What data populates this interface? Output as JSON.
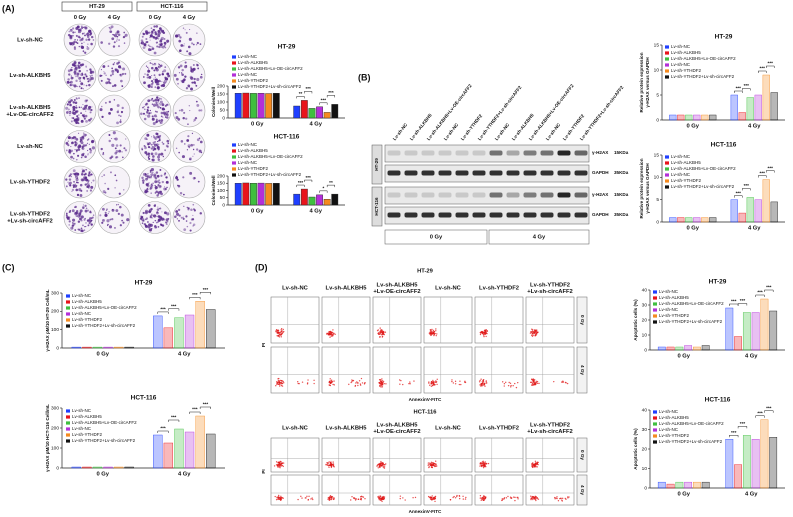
{
  "panel_labels": [
    "(A)",
    "(B)",
    "(C)",
    "(D)"
  ],
  "colony": {
    "cell_lines": [
      "HT-29",
      "HCT-116"
    ],
    "doses": [
      "0 Gy",
      "4 Gy",
      "0 Gy",
      "4 Gy"
    ],
    "rows": [
      [
        "Lv-sh-NC"
      ],
      [
        "Lv-sh-ALKBH5"
      ],
      [
        "Lv-sh-ALKBH5",
        "+Lv-OE-circAFF2"
      ],
      [
        "Lv-sh-NC"
      ],
      [
        "Lv-sh-YTHDF2"
      ],
      [
        "Lv-sh-YTHDF2",
        "+Lv-sh-circAFF2"
      ]
    ]
  },
  "blot": {
    "lanes": [
      "Lv-sh-NC",
      "Lv-sh-ALKBH5",
      "Lv-sh-ALKBH5+Lv-OE-circAFF2",
      "Lv-sh-NC",
      "Lv-sh-YTHDF2",
      "Lv-sh-YTHDF2+Lv-sh-circAFF2",
      "Lv-sh-NC",
      "Lv-sh-ALKBH5",
      "Lv-sh-ALKBH5+Lv-OE-circAFF2",
      "Lv-sh-NC",
      "Lv-sh-YTHDF2",
      "Lv-sh-YTHDF2+Lv-sh-circAFF2"
    ],
    "cell_lines": [
      "HT-29",
      "HCT-116"
    ],
    "bands": [
      {
        "name": "γ-H2AX",
        "size": "15KDa"
      },
      {
        "name": "GAPDH",
        "size": "35KDa"
      }
    ],
    "doses": [
      "0 Gy",
      "4 Gy"
    ]
  },
  "flow": [
    {
      "title": "HT-29",
      "columns": [
        [
          "Lv-sh-NC"
        ],
        [
          "Lv-sh-ALKBH5"
        ],
        [
          "Lv-sh-ALKBH5",
          "+Lv-OE-circAFF2"
        ],
        [
          "Lv-sh-NC"
        ],
        [
          "Lv-sh-YTHDF2"
        ],
        [
          "Lv-sh-YTHDF2",
          "+Lv-sh-circAFF2"
        ]
      ],
      "doses": [
        "0 Gy",
        "4 Gy"
      ],
      "y_label": "PI",
      "x_label": "AnnexinV-FITC"
    },
    {
      "title": "HCT-116",
      "columns": [
        [
          "Lv-sh-NC"
        ],
        [
          "Lv-sh-ALKBH5"
        ],
        [
          "Lv-sh-ALKBH5",
          "+Lv-OE-circAFF2"
        ],
        [
          "Lv-sh-NC"
        ],
        [
          "Lv-sh-YTHDF2"
        ],
        [
          "Lv-sh-YTHDF2",
          "+Lv-sh-circAFF2"
        ]
      ],
      "doses": [
        "0 Gy",
        "4 Gy"
      ],
      "y_label": "PI",
      "x_label": "AnnexinV-FITC"
    }
  ],
  "chart_data": [
    {
      "type": "bar",
      "title": "HT-29",
      "ylabel": "Colonies/Well",
      "categories": [
        "0 Gy",
        "4 Gy"
      ],
      "ylim": [
        0,
        200
      ],
      "yticks": [
        0,
        50,
        100,
        150,
        200
      ],
      "bar_fill": "solid",
      "series": [
        {
          "name": "Lv-sh-NC",
          "color": "#1f3fff",
          "values": [
            155,
            75
          ]
        },
        {
          "name": "Lv-sh-ALKBH5",
          "color": "#e8141b",
          "values": [
            156,
            110
          ]
        },
        {
          "name": "Lv-sh-ALKBH5+Lv-OE-circAFF2",
          "color": "#3fbf3f",
          "values": [
            154,
            60
          ]
        },
        {
          "name": "Lv-sh-NC",
          "color": "#b32fd8",
          "values": [
            155,
            70
          ]
        },
        {
          "name": "Lv-sh-YTHDF2",
          "color": "#f58a1f",
          "values": [
            153,
            35
          ]
        },
        {
          "name": "Lv-sh-YTHDF2+Lv-sh-circAFF2",
          "color": "#111111",
          "values": [
            155,
            85
          ]
        }
      ],
      "annotations": [
        "**",
        "***",
        "***",
        "***"
      ]
    },
    {
      "type": "bar",
      "title": "HCT-116",
      "ylabel": "Colonies/Well",
      "categories": [
        "0 Gy",
        "4 Gy"
      ],
      "ylim": [
        0,
        200
      ],
      "yticks": [
        0,
        50,
        100,
        150,
        200
      ],
      "bar_fill": "solid",
      "series": [
        {
          "name": "Lv-sh-NC",
          "color": "#1f3fff",
          "values": [
            150,
            75
          ]
        },
        {
          "name": "Lv-sh-ALKBH5",
          "color": "#e8141b",
          "values": [
            152,
            110
          ]
        },
        {
          "name": "Lv-sh-ALKBH5+Lv-OE-circAFF2",
          "color": "#3fbf3f",
          "values": [
            150,
            55
          ]
        },
        {
          "name": "Lv-sh-NC",
          "color": "#b32fd8",
          "values": [
            151,
            70
          ]
        },
        {
          "name": "Lv-sh-YTHDF2",
          "color": "#f58a1f",
          "values": [
            149,
            40
          ]
        },
        {
          "name": "Lv-sh-YTHDF2+Lv-sh-circAFF2",
          "color": "#111111",
          "values": [
            150,
            75
          ]
        }
      ],
      "annotations": [
        "***",
        "***",
        "*",
        "**"
      ]
    },
    {
      "type": "bar",
      "title": "HT-29",
      "ylabel": [
        "Relative protein expression",
        "γ-H2AX versus GAPDH"
      ],
      "categories": [
        "0 Gy",
        "4 Gy"
      ],
      "ylim": [
        0,
        15
      ],
      "yticks": [
        0,
        5,
        10,
        15
      ],
      "bar_fill": "light",
      "series": [
        {
          "name": "Lv-sh-NC",
          "color": "#1f3fff",
          "values": [
            1,
            5
          ]
        },
        {
          "name": "Lv-sh-ALKBH5",
          "color": "#e8141b",
          "values": [
            1,
            1.5
          ]
        },
        {
          "name": "Lv-sh-ALKBH5+Lv-OE-circAFF2",
          "color": "#3fbf3f",
          "values": [
            1,
            4.5
          ]
        },
        {
          "name": "Lv-sh-NC",
          "color": "#b32fd8",
          "values": [
            1,
            5
          ]
        },
        {
          "name": "Lv-sh-YTHDF2",
          "color": "#f58a1f",
          "values": [
            1,
            9
          ]
        },
        {
          "name": "Lv-sh-YTHDF2+Lv-sh-circAFF2",
          "color": "#111111",
          "values": [
            1,
            5.5
          ]
        }
      ],
      "annotations": [
        "***",
        "***",
        "***",
        "***"
      ]
    },
    {
      "type": "bar",
      "title": "HCT-116",
      "ylabel": [
        "Relative protein expression",
        "γ-H2AX versus GAPDH"
      ],
      "categories": [
        "0 Gy",
        "4 Gy"
      ],
      "ylim": [
        0,
        15
      ],
      "yticks": [
        0,
        5,
        10,
        15
      ],
      "bar_fill": "light",
      "series": [
        {
          "name": "Lv-sh-NC",
          "color": "#1f3fff",
          "values": [
            1,
            5
          ]
        },
        {
          "name": "Lv-sh-ALKBH5",
          "color": "#e8141b",
          "values": [
            1,
            2
          ]
        },
        {
          "name": "Lv-sh-ALKBH5+Lv-OE-circAFF2",
          "color": "#3fbf3f",
          "values": [
            1,
            5.5
          ]
        },
        {
          "name": "Lv-sh-NC",
          "color": "#b32fd8",
          "values": [
            1,
            5
          ]
        },
        {
          "name": "Lv-sh-YTHDF2",
          "color": "#f58a1f",
          "values": [
            1,
            9.5
          ]
        },
        {
          "name": "Lv-sh-YTHDF2+Lv-sh-circAFF2",
          "color": "#111111",
          "values": [
            1,
            4.5
          ]
        }
      ],
      "annotations": [
        "***",
        "***",
        "***",
        "***"
      ]
    },
    {
      "type": "bar",
      "title": "HT-29",
      "ylabel": "γ-H2AX pM/10 HT-29 Cell/mL",
      "categories": [
        "0 Gy",
        "4 Gy"
      ],
      "ylim": [
        0,
        300
      ],
      "yticks": [
        0,
        100,
        200,
        300
      ],
      "bar_fill": "light",
      "series": [
        {
          "name": "Lv-sh-NC",
          "color": "#1f3fff",
          "values": [
            5,
            175
          ]
        },
        {
          "name": "Lv-sh-ALKBH5",
          "color": "#e8141b",
          "values": [
            5,
            110
          ]
        },
        {
          "name": "Lv-sh-ALKBH5+Lv-OE-circAFF2",
          "color": "#3fbf3f",
          "values": [
            5,
            165
          ]
        },
        {
          "name": "Lv-sh-NC",
          "color": "#b32fd8",
          "values": [
            5,
            180
          ]
        },
        {
          "name": "Lv-sh-YTHDF2",
          "color": "#f58a1f",
          "values": [
            5,
            255
          ]
        },
        {
          "name": "Lv-sh-YTHDF2+Lv-sh-circAFF2",
          "color": "#111111",
          "values": [
            5,
            210
          ]
        }
      ],
      "annotations": [
        "***",
        "***",
        "***",
        "***"
      ]
    },
    {
      "type": "bar",
      "title": "HCT-116",
      "ylabel": "γ-H2AX pM/10 HCT-116 Cell/mL",
      "categories": [
        "0 Gy",
        "4 Gy"
      ],
      "ylim": [
        0,
        300
      ],
      "yticks": [
        0,
        100,
        200,
        300
      ],
      "bar_fill": "light",
      "series": [
        {
          "name": "Lv-sh-NC",
          "color": "#1f3fff",
          "values": [
            5,
            165
          ]
        },
        {
          "name": "Lv-sh-ALKBH5",
          "color": "#e8141b",
          "values": [
            5,
            125
          ]
        },
        {
          "name": "Lv-sh-ALKBH5+Lv-OE-circAFF2",
          "color": "#3fbf3f",
          "values": [
            5,
            195
          ]
        },
        {
          "name": "Lv-sh-NC",
          "color": "#b32fd8",
          "values": [
            5,
            180
          ]
        },
        {
          "name": "Lv-sh-YTHDF2",
          "color": "#f58a1f",
          "values": [
            5,
            260
          ]
        },
        {
          "name": "Lv-sh-YTHDF2+Lv-sh-circAFF2",
          "color": "#111111",
          "values": [
            5,
            170
          ]
        }
      ],
      "annotations": [
        "***",
        "***",
        "***",
        "***"
      ]
    },
    {
      "type": "bar",
      "title": "HT-29",
      "ylabel": "Apoptotic cells (%)",
      "categories": [
        "0 Gy",
        "4 Gy"
      ],
      "ylim": [
        0,
        40
      ],
      "yticks": [
        0,
        10,
        20,
        30,
        40
      ],
      "bar_fill": "light",
      "series": [
        {
          "name": "Lv-sh-NC",
          "color": "#1f3fff",
          "values": [
            2,
            28
          ]
        },
        {
          "name": "Lv-sh-ALKBH5",
          "color": "#e8141b",
          "values": [
            2,
            9
          ]
        },
        {
          "name": "Lv-sh-ALKBH5+Lv-OE-circAFF2",
          "color": "#3fbf3f",
          "values": [
            2,
            25
          ]
        },
        {
          "name": "Lv-sh-NC",
          "color": "#b32fd8",
          "values": [
            3,
            25
          ]
        },
        {
          "name": "Lv-sh-YTHDF2",
          "color": "#f58a1f",
          "values": [
            2,
            34
          ]
        },
        {
          "name": "Lv-sh-YTHDF2+Lv-sh-circAFF2",
          "color": "#111111",
          "values": [
            3,
            26
          ]
        }
      ],
      "annotations": [
        "***",
        "***",
        "***",
        "***"
      ]
    },
    {
      "type": "bar",
      "title": "HCT-116",
      "ylabel": "Apoptotic cells (%)",
      "categories": [
        "0 Gy",
        "4 Gy"
      ],
      "ylim": [
        0,
        40
      ],
      "yticks": [
        0,
        10,
        20,
        30,
        40
      ],
      "bar_fill": "light",
      "series": [
        {
          "name": "Lv-sh-NC",
          "color": "#1f3fff",
          "values": [
            3,
            25
          ]
        },
        {
          "name": "Lv-sh-ALKBH5",
          "color": "#e8141b",
          "values": [
            2,
            12
          ]
        },
        {
          "name": "Lv-sh-ALKBH5+Lv-OE-circAFF2",
          "color": "#3fbf3f",
          "values": [
            3,
            27
          ]
        },
        {
          "name": "Lv-sh-NC",
          "color": "#b32fd8",
          "values": [
            3,
            25
          ]
        },
        {
          "name": "Lv-sh-YTHDF2",
          "color": "#f58a1f",
          "values": [
            3,
            35
          ]
        },
        {
          "name": "Lv-sh-YTHDF2+Lv-sh-circAFF2",
          "color": "#111111",
          "values": [
            3,
            26
          ]
        }
      ],
      "annotations": [
        "***",
        "***",
        "***",
        "***"
      ]
    }
  ]
}
